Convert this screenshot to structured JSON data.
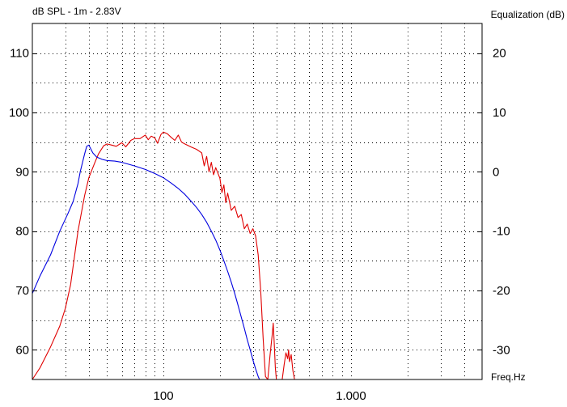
{
  "chart_data": {
    "type": "line",
    "left_axis_title": "dB SPL - 1m - 2.83V",
    "right_axis_title": "Equalization (dB)",
    "x_axis_title": "Freq.Hz",
    "x_scale": "log",
    "x_range": [
      20,
      5000
    ],
    "left_ylim": [
      55,
      115
    ],
    "right_ylim": [
      -35,
      25
    ],
    "x_tick_labels": [
      {
        "value": 100,
        "label": "100"
      },
      {
        "value": 1000,
        "label": "1.000"
      }
    ],
    "left_tick_labels": [
      {
        "value": 60,
        "label": "60"
      },
      {
        "value": 70,
        "label": "70"
      },
      {
        "value": 80,
        "label": "80"
      },
      {
        "value": 90,
        "label": "90"
      },
      {
        "value": 100,
        "label": "100"
      },
      {
        "value": 110,
        "label": "110"
      }
    ],
    "right_tick_labels": [
      {
        "value": -30,
        "label": "-30"
      },
      {
        "value": -20,
        "label": "-20"
      },
      {
        "value": -10,
        "label": "-10"
      },
      {
        "value": 0,
        "label": "0"
      },
      {
        "value": 10,
        "label": "10"
      },
      {
        "value": 20,
        "label": "20"
      }
    ],
    "grid": true,
    "series": [
      {
        "color": "#e00000",
        "axis": "left",
        "points": [
          [
            20,
            55.0
          ],
          [
            22,
            57.0
          ],
          [
            25,
            60.5
          ],
          [
            28,
            64.0
          ],
          [
            30,
            67.0
          ],
          [
            32,
            71.0
          ],
          [
            35,
            80.0
          ],
          [
            38,
            86.0
          ],
          [
            40,
            89.0
          ],
          [
            43,
            91.5
          ],
          [
            45,
            93.0
          ],
          [
            48,
            94.4
          ],
          [
            50,
            94.7
          ],
          [
            53,
            94.5
          ],
          [
            56,
            94.3
          ],
          [
            60,
            94.9
          ],
          [
            63,
            94.2
          ],
          [
            67,
            95.3
          ],
          [
            70,
            95.6
          ],
          [
            75,
            95.6
          ],
          [
            80,
            96.2
          ],
          [
            83,
            95.4
          ],
          [
            86,
            96.0
          ],
          [
            90,
            95.7
          ],
          [
            93,
            94.8
          ],
          [
            97,
            96.3
          ],
          [
            100,
            96.7
          ],
          [
            105,
            96.4
          ],
          [
            110,
            95.8
          ],
          [
            115,
            95.3
          ],
          [
            120,
            96.2
          ],
          [
            125,
            95.0
          ],
          [
            130,
            94.7
          ],
          [
            140,
            94.2
          ],
          [
            150,
            93.8
          ],
          [
            160,
            93.2
          ],
          [
            165,
            91.0
          ],
          [
            170,
            92.6
          ],
          [
            175,
            90.0
          ],
          [
            180,
            91.6
          ],
          [
            185,
            89.5
          ],
          [
            190,
            90.7
          ],
          [
            200,
            88.9
          ],
          [
            205,
            86.5
          ],
          [
            210,
            87.8
          ],
          [
            215,
            84.8
          ],
          [
            220,
            86.4
          ],
          [
            230,
            83.5
          ],
          [
            240,
            84.2
          ],
          [
            250,
            82.3
          ],
          [
            260,
            82.8
          ],
          [
            270,
            80.4
          ],
          [
            280,
            81.2
          ],
          [
            290,
            79.6
          ],
          [
            300,
            80.4
          ],
          [
            310,
            79.2
          ],
          [
            320,
            76.0
          ],
          [
            330,
            70.0
          ],
          [
            340,
            62.0
          ],
          [
            350,
            55.5
          ],
          [
            360,
            55.0
          ],
          [
            370,
            59.0
          ],
          [
            380,
            62.5
          ],
          [
            385,
            64.5
          ],
          [
            390,
            61.0
          ],
          [
            395,
            57.0
          ],
          [
            400,
            55.0
          ],
          [
            430,
            55.0
          ],
          [
            440,
            57.5
          ],
          [
            450,
            59.5
          ],
          [
            460,
            58.5
          ],
          [
            465,
            60.0
          ],
          [
            470,
            58.0
          ],
          [
            480,
            59.2
          ],
          [
            490,
            56.5
          ],
          [
            500,
            55.0
          ]
        ]
      },
      {
        "color": "#0000e0",
        "axis": "left",
        "points": [
          [
            20,
            69.5
          ],
          [
            22,
            72.5
          ],
          [
            25,
            76.0
          ],
          [
            28,
            80.0
          ],
          [
            31,
            83.0
          ],
          [
            33,
            85.0
          ],
          [
            35,
            88.0
          ],
          [
            36,
            90.0
          ],
          [
            38,
            93.0
          ],
          [
            39,
            94.3
          ],
          [
            40,
            94.5
          ],
          [
            42,
            93.2
          ],
          [
            44,
            92.5
          ],
          [
            47,
            92.1
          ],
          [
            50,
            91.9
          ],
          [
            55,
            91.8
          ],
          [
            60,
            91.6
          ],
          [
            70,
            91.0
          ],
          [
            80,
            90.4
          ],
          [
            90,
            89.7
          ],
          [
            100,
            89.0
          ],
          [
            110,
            88.1
          ],
          [
            120,
            87.2
          ],
          [
            130,
            86.2
          ],
          [
            140,
            85.1
          ],
          [
            150,
            84.0
          ],
          [
            160,
            82.8
          ],
          [
            170,
            81.5
          ],
          [
            180,
            80.0
          ],
          [
            190,
            78.5
          ],
          [
            200,
            76.8
          ],
          [
            210,
            75.0
          ],
          [
            220,
            73.2
          ],
          [
            230,
            71.4
          ],
          [
            240,
            69.5
          ],
          [
            250,
            67.5
          ],
          [
            260,
            65.5
          ],
          [
            270,
            63.6
          ],
          [
            280,
            61.7
          ],
          [
            290,
            60.0
          ],
          [
            300,
            58.3
          ],
          [
            310,
            56.8
          ],
          [
            320,
            55.5
          ],
          [
            325,
            55.0
          ]
        ]
      }
    ]
  }
}
